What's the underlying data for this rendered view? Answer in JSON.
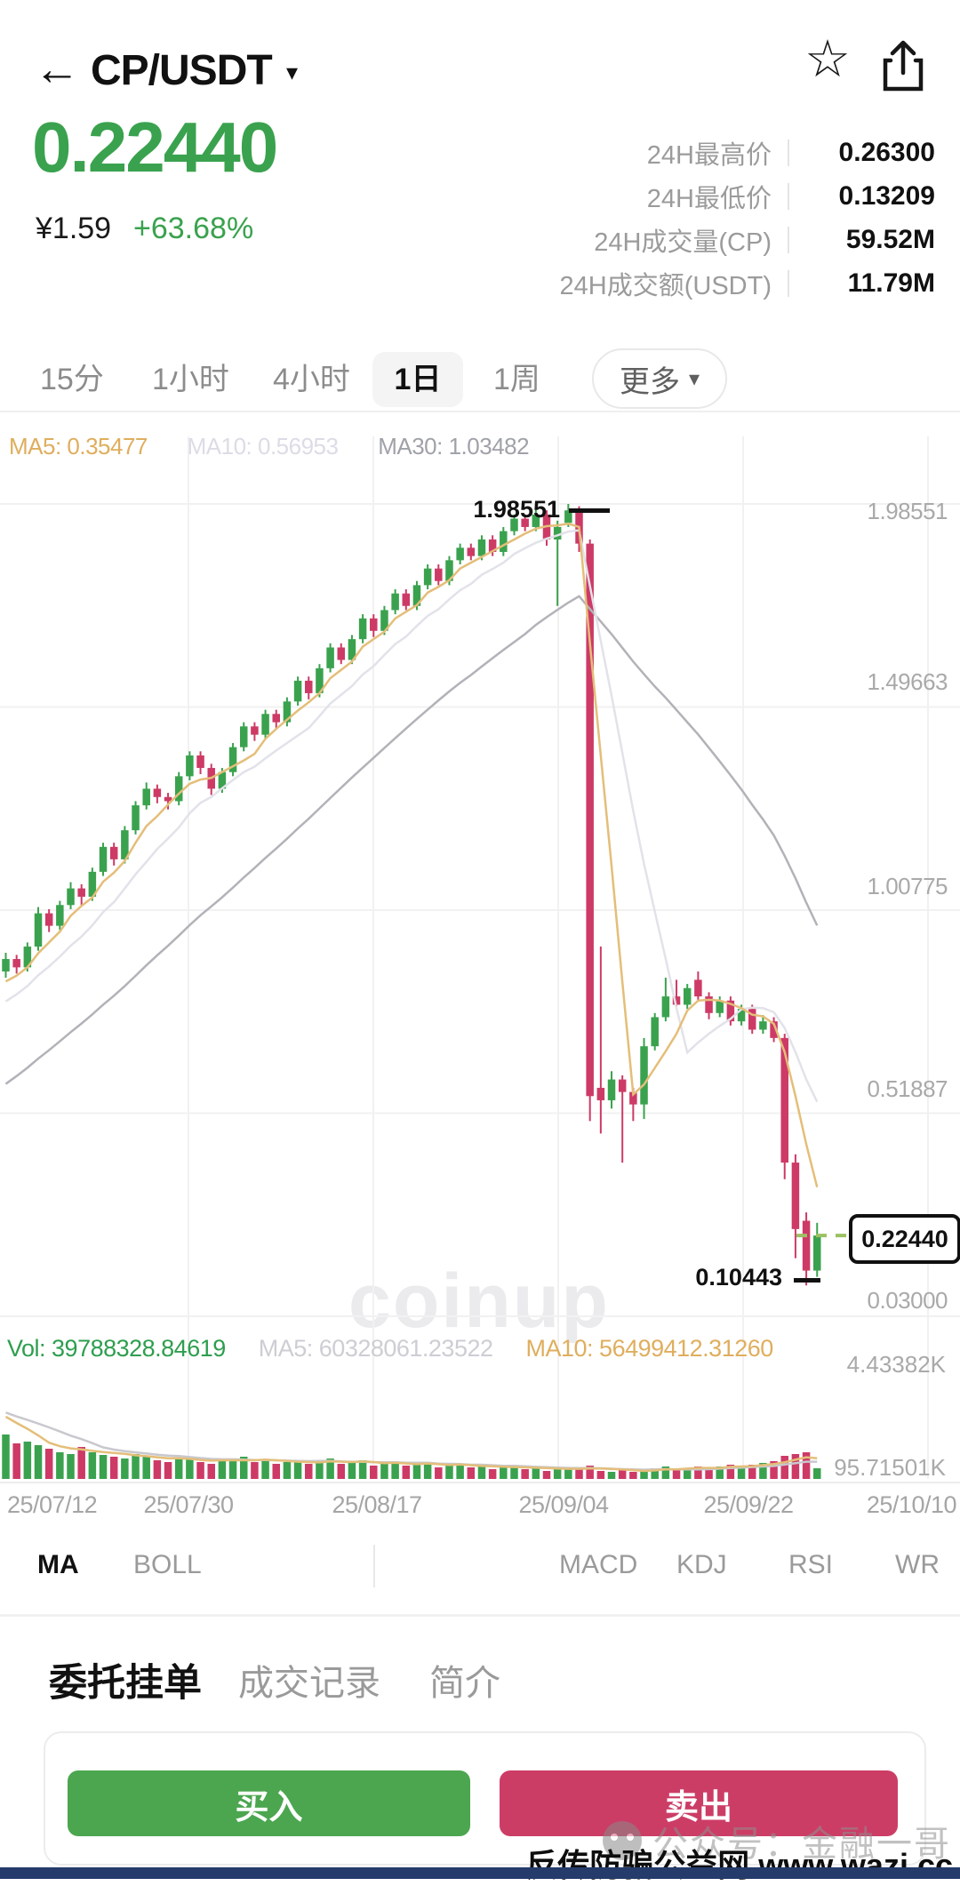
{
  "header": {
    "title": "CP/USDT",
    "back_icon": "←",
    "caret_icon": "▾",
    "star_icon": "☆"
  },
  "price_panel": {
    "last_price": "0.22440",
    "fiat_price": "¥1.59",
    "change_percent": "+63.68%",
    "up_color": "#3aa24e",
    "stats": [
      {
        "label": "24H最高价",
        "value": "0.26300"
      },
      {
        "label": "24H最低价",
        "value": "0.13209"
      },
      {
        "label": "24H成交量(CP)",
        "value": "59.52M"
      },
      {
        "label": "24H成交额(USDT)",
        "value": "11.79M"
      }
    ]
  },
  "timeframe_tabs": {
    "items": [
      {
        "label": "15分",
        "active": false
      },
      {
        "label": "1小时",
        "active": false
      },
      {
        "label": "4小时",
        "active": false
      },
      {
        "label": "1日",
        "active": true
      },
      {
        "label": "1周",
        "active": false
      }
    ],
    "more_label": "更多",
    "more_caret": "▾"
  },
  "chart": {
    "ma_labels": [
      {
        "label": "MA5: 0.35477",
        "color": "#dfae5e"
      },
      {
        "label": "MA10: 0.56953",
        "color": "#dcdce6"
      },
      {
        "label": "MA30: 1.03482",
        "color": "#9fa2a8"
      }
    ],
    "y_axis_labels": [
      "1.98551",
      "1.49663",
      "1.00775",
      "0.51887",
      "0.03000"
    ],
    "high_label": "1.98551",
    "low_label": "0.10443",
    "price_tag": "0.22440",
    "watermark": "coinup",
    "vol_labels": [
      {
        "label": "Vol: 39788328.84619",
        "color": "#2e9e4f"
      },
      {
        "label": "MA5: 60328061.23522",
        "color": "#cdcdd4"
      },
      {
        "label": "MA10: 56499412.31260",
        "color": "#dfae5e"
      }
    ],
    "vol_axis_top": "4.43382K",
    "vol_axis_bottom": "95.71501K",
    "x_axis_labels": [
      "25/07/12",
      "25/07/30",
      "25/08/17",
      "25/09/04",
      "25/09/22",
      "25/10/10"
    ]
  },
  "chart_data": {
    "type": "candlestick+volume",
    "pitch": 12.17,
    "price_axis": {
      "max": 1.98551,
      "min": 0.03
    },
    "high_point": 1.98551,
    "low_point": 0.10443,
    "last_close": 0.2244,
    "up_color": "#3aa24e",
    "down_color": "#cd3a66",
    "ma_colors": {
      "ma5": "#e4be79",
      "ma10": "#e2e2ea",
      "ma30": "#b2b2b8"
    },
    "grid_color": "#f1f1f2",
    "dash_color": "#9cc161",
    "candles": [
      [
        0.86,
        0.905,
        0.845,
        0.89
      ],
      [
        0.89,
        0.9,
        0.855,
        0.87
      ],
      [
        0.87,
        0.93,
        0.86,
        0.92
      ],
      [
        0.92,
        1.015,
        0.91,
        1.0
      ],
      [
        1.0,
        1.01,
        0.955,
        0.97
      ],
      [
        0.97,
        1.03,
        0.96,
        1.02
      ],
      [
        1.02,
        1.075,
        1.01,
        1.06
      ],
      [
        1.06,
        1.07,
        1.02,
        1.04
      ],
      [
        1.04,
        1.11,
        1.03,
        1.1
      ],
      [
        1.1,
        1.17,
        1.09,
        1.16
      ],
      [
        1.16,
        1.17,
        1.115,
        1.13
      ],
      [
        1.13,
        1.21,
        1.12,
        1.2
      ],
      [
        1.2,
        1.27,
        1.19,
        1.26
      ],
      [
        1.26,
        1.315,
        1.25,
        1.3
      ],
      [
        1.3,
        1.31,
        1.265,
        1.28
      ],
      [
        1.28,
        1.29,
        1.25,
        1.27
      ],
      [
        1.27,
        1.34,
        1.26,
        1.33
      ],
      [
        1.33,
        1.39,
        1.32,
        1.38
      ],
      [
        1.38,
        1.39,
        1.335,
        1.35
      ],
      [
        1.35,
        1.36,
        1.285,
        1.3
      ],
      [
        1.3,
        1.35,
        1.29,
        1.34
      ],
      [
        1.34,
        1.41,
        1.33,
        1.4
      ],
      [
        1.4,
        1.46,
        1.39,
        1.45
      ],
      [
        1.45,
        1.46,
        1.415,
        1.43
      ],
      [
        1.43,
        1.49,
        1.42,
        1.48
      ],
      [
        1.48,
        1.49,
        1.445,
        1.46
      ],
      [
        1.46,
        1.52,
        1.45,
        1.51
      ],
      [
        1.51,
        1.57,
        1.5,
        1.56
      ],
      [
        1.56,
        1.57,
        1.515,
        1.53
      ],
      [
        1.53,
        1.6,
        1.52,
        1.59
      ],
      [
        1.59,
        1.65,
        1.58,
        1.64
      ],
      [
        1.64,
        1.65,
        1.6,
        1.61
      ],
      [
        1.61,
        1.67,
        1.6,
        1.66
      ],
      [
        1.66,
        1.72,
        1.65,
        1.71
      ],
      [
        1.71,
        1.72,
        1.665,
        1.68
      ],
      [
        1.68,
        1.74,
        1.67,
        1.73
      ],
      [
        1.73,
        1.78,
        1.72,
        1.77
      ],
      [
        1.77,
        1.78,
        1.73,
        1.74
      ],
      [
        1.74,
        1.8,
        1.73,
        1.79
      ],
      [
        1.79,
        1.84,
        1.78,
        1.83
      ],
      [
        1.83,
        1.84,
        1.79,
        1.8
      ],
      [
        1.8,
        1.86,
        1.79,
        1.85
      ],
      [
        1.85,
        1.89,
        1.84,
        1.88
      ],
      [
        1.88,
        1.89,
        1.85,
        1.86
      ],
      [
        1.86,
        1.91,
        1.85,
        1.9
      ],
      [
        1.9,
        1.91,
        1.86,
        1.87
      ],
      [
        1.87,
        1.93,
        1.86,
        1.92
      ],
      [
        1.92,
        1.96,
        1.91,
        1.95
      ],
      [
        1.95,
        1.96,
        1.92,
        1.93
      ],
      [
        1.93,
        1.985,
        1.92,
        1.96
      ],
      [
        1.96,
        1.97,
        1.885,
        1.9
      ],
      [
        1.9,
        1.945,
        1.74,
        1.93
      ],
      [
        1.94,
        1.98551,
        1.93,
        1.97
      ],
      [
        1.97,
        1.98,
        1.87,
        1.89
      ],
      [
        1.89,
        1.9,
        0.5,
        0.56
      ],
      [
        0.58,
        0.92,
        0.47,
        0.55
      ],
      [
        0.55,
        0.62,
        0.53,
        0.6
      ],
      [
        0.6,
        0.61,
        0.4,
        0.57
      ],
      [
        0.57,
        0.58,
        0.5,
        0.54
      ],
      [
        0.54,
        0.7,
        0.505,
        0.68
      ],
      [
        0.68,
        0.76,
        0.67,
        0.75
      ],
      [
        0.75,
        0.845,
        0.74,
        0.8
      ],
      [
        0.8,
        0.84,
        0.77,
        0.78
      ],
      [
        0.78,
        0.83,
        0.77,
        0.82
      ],
      [
        0.84,
        0.86,
        0.79,
        0.8
      ],
      [
        0.8,
        0.81,
        0.745,
        0.76
      ],
      [
        0.76,
        0.8,
        0.75,
        0.79
      ],
      [
        0.79,
        0.8,
        0.73,
        0.74
      ],
      [
        0.74,
        0.78,
        0.73,
        0.77
      ],
      [
        0.77,
        0.78,
        0.71,
        0.72
      ],
      [
        0.72,
        0.755,
        0.71,
        0.74
      ],
      [
        0.74,
        0.75,
        0.69,
        0.7
      ],
      [
        0.7,
        0.71,
        0.36,
        0.4
      ],
      [
        0.4,
        0.42,
        0.17,
        0.24
      ],
      [
        0.26,
        0.28,
        0.10443,
        0.14
      ],
      [
        0.14,
        0.255,
        0.125,
        0.2244
      ]
    ],
    "volumes": [
      50,
      40,
      42,
      38,
      34,
      30,
      28,
      36,
      30,
      27,
      25,
      23,
      28,
      25,
      21,
      19,
      23,
      25,
      19,
      17,
      21,
      23,
      25,
      19,
      21,
      17,
      19,
      21,
      17,
      19,
      23,
      17,
      19,
      21,
      15,
      17,
      19,
      15,
      17,
      19,
      13,
      15,
      17,
      13,
      15,
      11,
      13,
      15,
      11,
      13,
      9,
      11,
      13,
      11,
      15,
      9,
      8,
      10,
      8,
      10,
      12,
      14,
      10,
      12,
      14,
      12,
      14,
      16,
      14,
      16,
      18,
      20,
      26,
      28,
      30,
      12
    ],
    "ma_seed": [
      0.3,
      0.32,
      0.34,
      0.36,
      0.38,
      0.4,
      0.42,
      0.44,
      0.46,
      0.48,
      0.5,
      0.52,
      0.54,
      0.56,
      0.58,
      0.6,
      0.62,
      0.64,
      0.66,
      0.68,
      0.7,
      0.72,
      0.74,
      0.76,
      0.78,
      0.8,
      0.82,
      0.83,
      0.84
    ],
    "vol_ma_seed": [
      160,
      156,
      152,
      148,
      144,
      140,
      136,
      132,
      128,
      124,
      120,
      116,
      112,
      108,
      104,
      100,
      96,
      93,
      90,
      87,
      84,
      81,
      79,
      77,
      76,
      75,
      75,
      75,
      75
    ]
  },
  "indicator_tabs": {
    "items": [
      {
        "label": "MA",
        "active": true
      },
      {
        "label": "BOLL",
        "active": false
      },
      {
        "label": "MACD",
        "active": false
      },
      {
        "label": "KDJ",
        "active": false
      },
      {
        "label": "RSI",
        "active": false
      },
      {
        "label": "WR",
        "active": false
      }
    ]
  },
  "bottom_tabs": [
    {
      "label": "委托挂单",
      "active": true
    },
    {
      "label": "成交记录",
      "active": false
    },
    {
      "label": "简介",
      "active": false
    }
  ],
  "trade": {
    "buy_label": "买入",
    "sell_label": "卖出",
    "buy_color": "#4ba64f",
    "sell_color": "#cc3d66"
  },
  "watermarks": {
    "wechat": "公众号：金融一哥",
    "site": "反传防骗公益网 www.wazi.cc",
    "bottom_bar_color": "#243b6b"
  }
}
